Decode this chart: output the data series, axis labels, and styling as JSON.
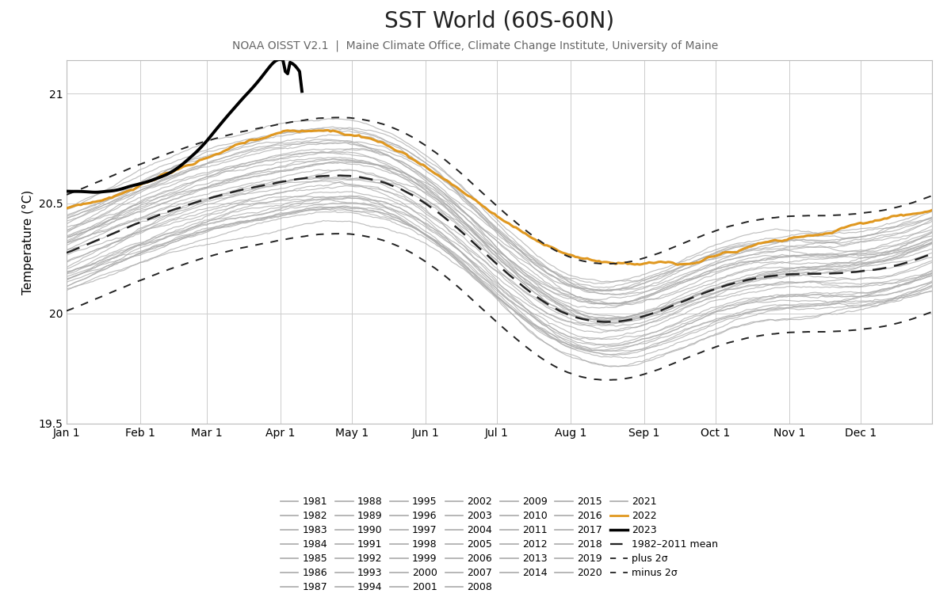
{
  "title": "SST World (60S-60N)",
  "subtitle": "NOAA OISST V2.1  |  Maine Climate Office, Climate Change Institute, University of Maine",
  "ylabel": "Temperature (°C)",
  "ylim": [
    19.5,
    21.15
  ],
  "yticks": [
    19.5,
    20.0,
    20.5,
    21.0
  ],
  "months": [
    "Jan 1",
    "Feb 1",
    "Mar 1",
    "Apr 1",
    "May 1",
    "Jun 1",
    "Jul 1",
    "Aug 1",
    "Sep 1",
    "Oct 1",
    "Nov 1",
    "Dec 1"
  ],
  "gray_color": "#aaaaaa",
  "orange_color": "#e09820",
  "black_color": "#000000",
  "mean_color": "#222222",
  "background": "#ffffff",
  "title_fontsize": 20,
  "subtitle_fontsize": 10,
  "axis_fontsize": 11,
  "tick_fontsize": 10,
  "legend_fontsize": 9
}
